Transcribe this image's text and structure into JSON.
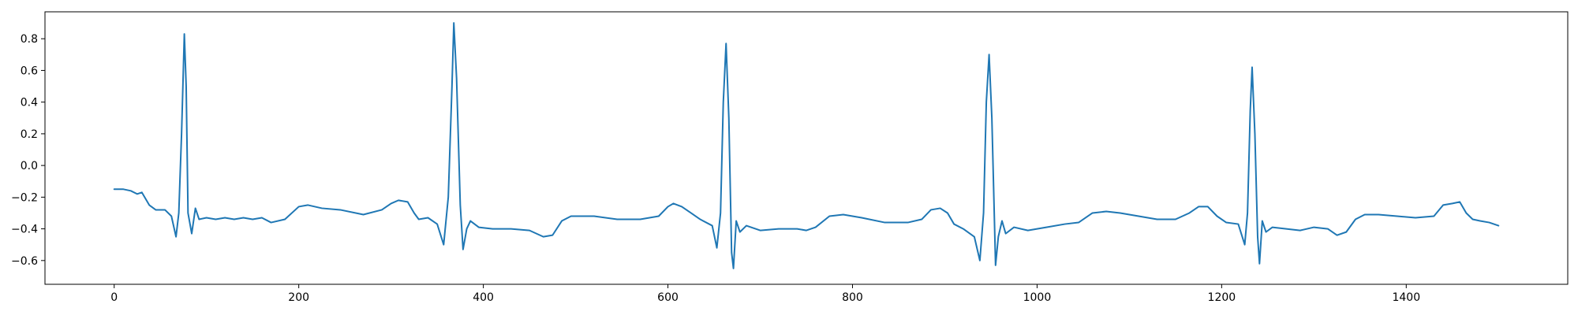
{
  "chart_data": {
    "type": "line",
    "title": "",
    "xlabel": "",
    "ylabel": "",
    "xlim": [
      -75,
      1575
    ],
    "ylim": [
      -0.75,
      0.97
    ],
    "xticks": [
      0,
      200,
      400,
      600,
      800,
      1000,
      1200,
      1400
    ],
    "xtick_labels": [
      "0",
      "200",
      "400",
      "600",
      "800",
      "1000",
      "1200",
      "1400"
    ],
    "yticks": [
      -0.6,
      -0.4,
      -0.2,
      0.0,
      0.2,
      0.4,
      0.6,
      0.8
    ],
    "ytick_labels": [
      "−0.6",
      "−0.4",
      "−0.2",
      "0.0",
      "0.2",
      "0.4",
      "0.6",
      "0.8"
    ],
    "grid": false,
    "series": [
      {
        "color": "#1f77b4",
        "points": [
          [
            0,
            -0.15
          ],
          [
            10,
            -0.15
          ],
          [
            18,
            -0.16
          ],
          [
            25,
            -0.18
          ],
          [
            30,
            -0.17
          ],
          [
            38,
            -0.25
          ],
          [
            45,
            -0.28
          ],
          [
            55,
            -0.28
          ],
          [
            62,
            -0.32
          ],
          [
            67,
            -0.45
          ],
          [
            70,
            -0.3
          ],
          [
            73,
            0.2
          ],
          [
            76,
            0.83
          ],
          [
            78,
            0.5
          ],
          [
            80,
            -0.3
          ],
          [
            84,
            -0.43
          ],
          [
            88,
            -0.27
          ],
          [
            92,
            -0.34
          ],
          [
            100,
            -0.33
          ],
          [
            110,
            -0.34
          ],
          [
            120,
            -0.33
          ],
          [
            130,
            -0.34
          ],
          [
            140,
            -0.33
          ],
          [
            150,
            -0.34
          ],
          [
            160,
            -0.33
          ],
          [
            170,
            -0.36
          ],
          [
            185,
            -0.34
          ],
          [
            200,
            -0.26
          ],
          [
            210,
            -0.25
          ],
          [
            225,
            -0.27
          ],
          [
            245,
            -0.28
          ],
          [
            270,
            -0.31
          ],
          [
            290,
            -0.28
          ],
          [
            300,
            -0.24
          ],
          [
            308,
            -0.22
          ],
          [
            318,
            -0.23
          ],
          [
            325,
            -0.3
          ],
          [
            330,
            -0.34
          ],
          [
            340,
            -0.33
          ],
          [
            350,
            -0.37
          ],
          [
            357,
            -0.5
          ],
          [
            362,
            -0.2
          ],
          [
            366,
            0.5
          ],
          [
            368,
            0.9
          ],
          [
            371,
            0.55
          ],
          [
            375,
            -0.25
          ],
          [
            378,
            -0.53
          ],
          [
            382,
            -0.4
          ],
          [
            386,
            -0.35
          ],
          [
            395,
            -0.39
          ],
          [
            410,
            -0.4
          ],
          [
            430,
            -0.4
          ],
          [
            450,
            -0.41
          ],
          [
            465,
            -0.45
          ],
          [
            475,
            -0.44
          ],
          [
            485,
            -0.35
          ],
          [
            495,
            -0.32
          ],
          [
            520,
            -0.32
          ],
          [
            545,
            -0.34
          ],
          [
            570,
            -0.34
          ],
          [
            590,
            -0.32
          ],
          [
            600,
            -0.26
          ],
          [
            606,
            -0.24
          ],
          [
            615,
            -0.26
          ],
          [
            625,
            -0.3
          ],
          [
            635,
            -0.34
          ],
          [
            648,
            -0.38
          ],
          [
            653,
            -0.52
          ],
          [
            657,
            -0.3
          ],
          [
            660,
            0.4
          ],
          [
            663,
            0.77
          ],
          [
            666,
            0.3
          ],
          [
            669,
            -0.55
          ],
          [
            671,
            -0.65
          ],
          [
            674,
            -0.35
          ],
          [
            678,
            -0.42
          ],
          [
            685,
            -0.38
          ],
          [
            700,
            -0.41
          ],
          [
            720,
            -0.4
          ],
          [
            740,
            -0.4
          ],
          [
            750,
            -0.41
          ],
          [
            760,
            -0.39
          ],
          [
            775,
            -0.32
          ],
          [
            790,
            -0.31
          ],
          [
            810,
            -0.33
          ],
          [
            835,
            -0.36
          ],
          [
            860,
            -0.36
          ],
          [
            875,
            -0.34
          ],
          [
            885,
            -0.28
          ],
          [
            895,
            -0.27
          ],
          [
            903,
            -0.3
          ],
          [
            910,
            -0.37
          ],
          [
            920,
            -0.4
          ],
          [
            932,
            -0.45
          ],
          [
            938,
            -0.6
          ],
          [
            942,
            -0.3
          ],
          [
            945,
            0.4
          ],
          [
            948,
            0.7
          ],
          [
            951,
            0.3
          ],
          [
            955,
            -0.63
          ],
          [
            958,
            -0.45
          ],
          [
            962,
            -0.35
          ],
          [
            966,
            -0.43
          ],
          [
            975,
            -0.39
          ],
          [
            990,
            -0.41
          ],
          [
            1010,
            -0.39
          ],
          [
            1030,
            -0.37
          ],
          [
            1045,
            -0.36
          ],
          [
            1060,
            -0.3
          ],
          [
            1075,
            -0.29
          ],
          [
            1090,
            -0.3
          ],
          [
            1110,
            -0.32
          ],
          [
            1130,
            -0.34
          ],
          [
            1150,
            -0.34
          ],
          [
            1165,
            -0.3
          ],
          [
            1175,
            -0.26
          ],
          [
            1185,
            -0.26
          ],
          [
            1195,
            -0.32
          ],
          [
            1205,
            -0.36
          ],
          [
            1218,
            -0.37
          ],
          [
            1225,
            -0.5
          ],
          [
            1228,
            -0.3
          ],
          [
            1231,
            0.35
          ],
          [
            1233,
            0.62
          ],
          [
            1236,
            0.2
          ],
          [
            1239,
            -0.45
          ],
          [
            1241,
            -0.62
          ],
          [
            1244,
            -0.35
          ],
          [
            1248,
            -0.42
          ],
          [
            1255,
            -0.39
          ],
          [
            1270,
            -0.4
          ],
          [
            1285,
            -0.41
          ],
          [
            1300,
            -0.39
          ],
          [
            1315,
            -0.4
          ],
          [
            1325,
            -0.44
          ],
          [
            1335,
            -0.42
          ],
          [
            1345,
            -0.34
          ],
          [
            1355,
            -0.31
          ],
          [
            1370,
            -0.31
          ],
          [
            1390,
            -0.32
          ],
          [
            1410,
            -0.33
          ],
          [
            1430,
            -0.32
          ],
          [
            1440,
            -0.25
          ],
          [
            1450,
            -0.24
          ],
          [
            1458,
            -0.23
          ],
          [
            1465,
            -0.3
          ],
          [
            1472,
            -0.34
          ],
          [
            1480,
            -0.35
          ],
          [
            1490,
            -0.36
          ],
          [
            1500,
            -0.38
          ]
        ]
      }
    ]
  }
}
